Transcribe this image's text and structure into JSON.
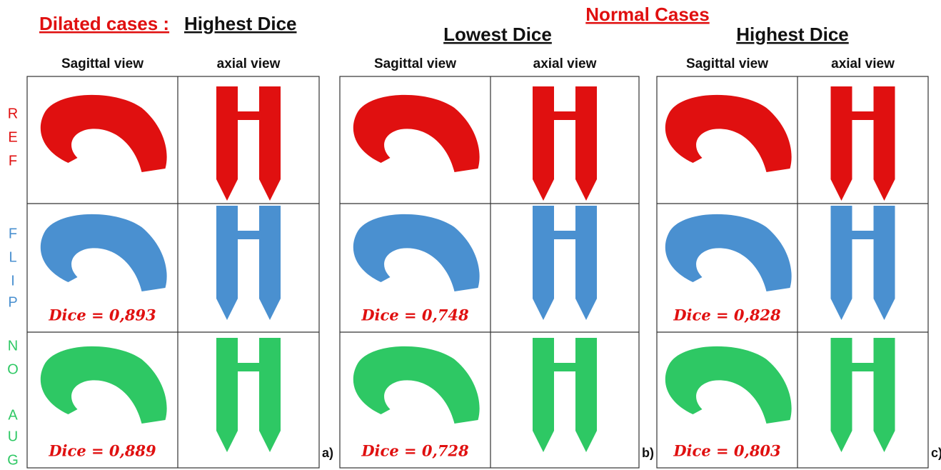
{
  "headers": {
    "dilated": "Dilated cases :",
    "normal": "Normal Cases"
  },
  "panels": [
    {
      "title": "Highest Dice",
      "columns": [
        "Sagittal view",
        "axial view"
      ],
      "dice": [
        "Dice = 0,893",
        "Dice = 0,889"
      ],
      "tag": "a)"
    },
    {
      "title": "Lowest Dice",
      "columns": [
        "Sagittal view",
        "axial view"
      ],
      "dice": [
        "Dice = 0,748",
        "Dice = 0,728"
      ],
      "tag": "b)"
    },
    {
      "title": "Highest Dice",
      "columns": [
        "Sagittal view",
        "axial view"
      ],
      "dice": [
        "Dice = 0,828",
        "Dice = 0,803"
      ],
      "tag": "c)"
    }
  ],
  "row_labels": [
    [
      "R",
      "E",
      "F"
    ],
    [
      "F",
      "L",
      "I",
      "P"
    ],
    [
      "N",
      "O",
      "A",
      "U",
      "G"
    ]
  ]
}
